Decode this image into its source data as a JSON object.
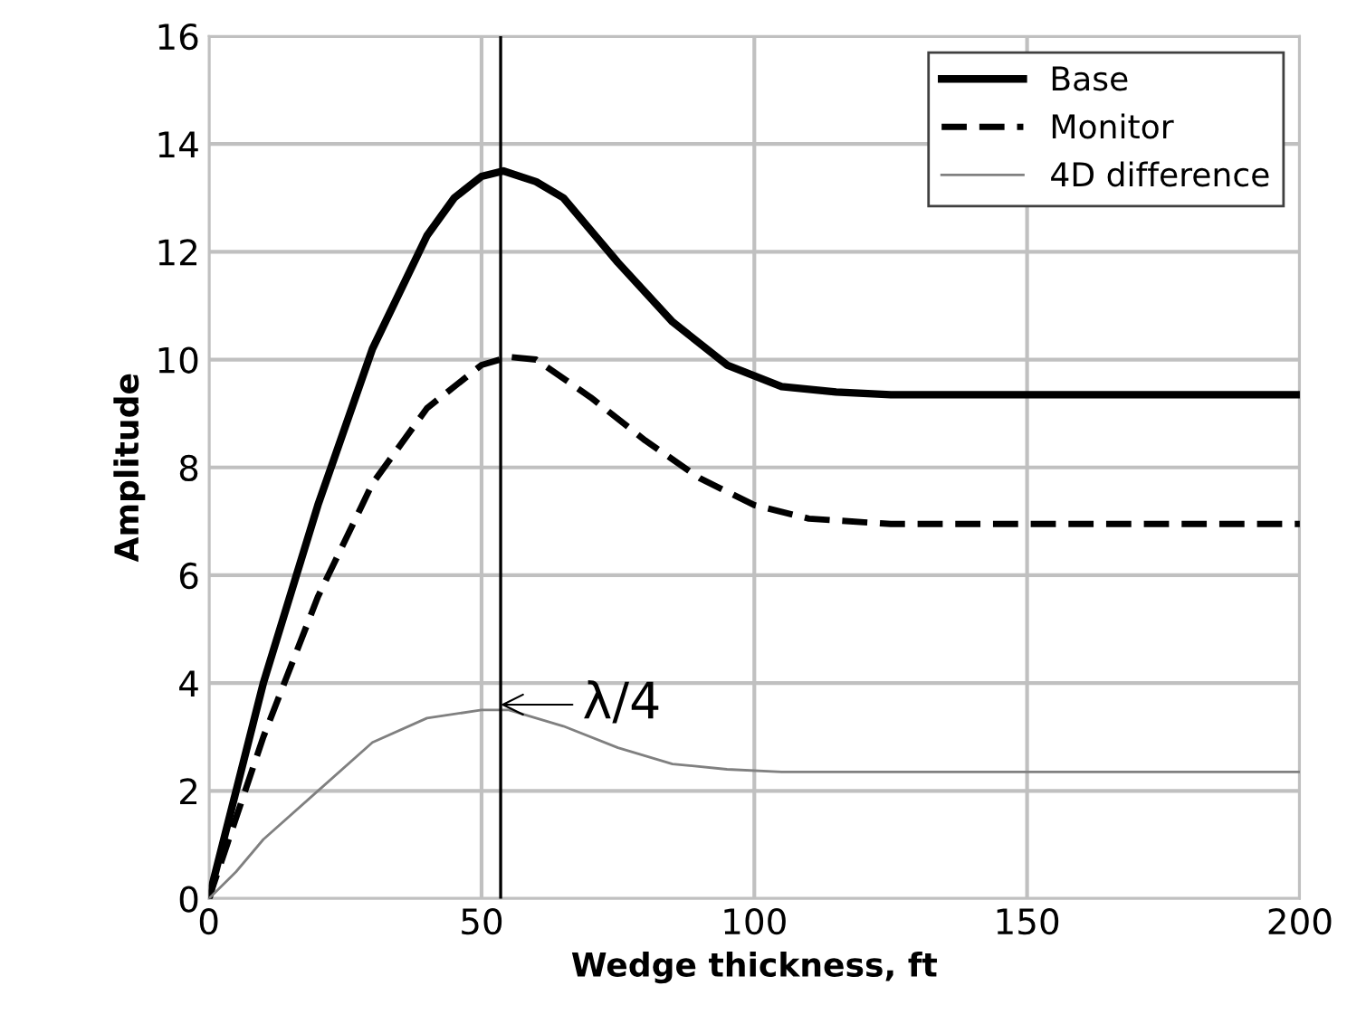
{
  "chart_data": {
    "type": "line",
    "xlabel": "Wedge thickness, ft",
    "ylabel": "Amplitude",
    "xlim": [
      0,
      200
    ],
    "xticks": [
      0,
      50,
      100,
      150,
      200
    ],
    "ylim": [
      0,
      16
    ],
    "yticks": [
      0,
      2,
      4,
      6,
      8,
      10,
      12,
      14,
      16
    ],
    "grid": true,
    "legend": "top right",
    "marker": "none",
    "series": [
      {
        "name": "Base",
        "color": "#000000",
        "line_style": "solid",
        "x": [
          0,
          10,
          20,
          30,
          40,
          45,
          50,
          54,
          60,
          65,
          75,
          85,
          95,
          105,
          115,
          125,
          150,
          200
        ],
        "values": [
          0,
          4,
          7.3,
          10.2,
          12.3,
          13,
          13.4,
          13.5,
          13.3,
          13,
          11.8,
          10.7,
          9.9,
          9.5,
          9.4,
          9.35,
          9.35,
          9.35
        ]
      },
      {
        "name": "Monitor",
        "color": "#000000",
        "line_style": "dashed",
        "x": [
          0,
          10,
          20,
          30,
          40,
          50,
          55,
          60,
          70,
          80,
          90,
          100,
          110,
          125,
          200
        ],
        "values": [
          0,
          3,
          5.6,
          7.7,
          9.1,
          9.9,
          10.05,
          10,
          9.3,
          8.5,
          7.8,
          7.3,
          7.05,
          6.95,
          6.95
        ]
      },
      {
        "name": "4D difference",
        "color": "#808080",
        "line_style": "solid",
        "x": [
          0,
          5,
          10,
          20,
          30,
          40,
          50,
          55,
          65,
          75,
          85,
          95,
          105,
          200
        ],
        "values": [
          0,
          0.5,
          1.1,
          2,
          2.9,
          3.35,
          3.5,
          3.5,
          3.2,
          2.8,
          2.5,
          2.4,
          2.35,
          2.35
        ]
      }
    ],
    "ref_lines": [
      {
        "axis": "x",
        "value": 53.5,
        "label": null,
        "color": "#000000",
        "line_style": "solid"
      }
    ],
    "annotations": [
      {
        "text": "λ/4",
        "x": 53.5,
        "y": 3.6
      }
    ]
  }
}
